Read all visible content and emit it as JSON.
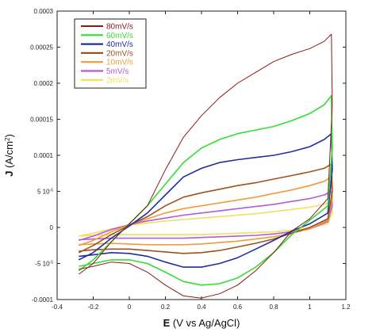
{
  "chart_data": {
    "type": "line",
    "title": "",
    "xlabel": {
      "bold": "E",
      "rest": " (V vs Ag/AgCl)"
    },
    "ylabel": {
      "bold": "J",
      "rest": " (A/cm",
      "sup": "2",
      "end": ")"
    },
    "xlim": [
      -0.4,
      1.2
    ],
    "ylim": [
      -0.0001,
      0.0003
    ],
    "x_ticks": [
      -0.4,
      -0.2,
      0,
      0.2,
      0.4,
      0.6,
      0.8,
      1,
      1.2
    ],
    "x_tick_labels": [
      "-0.4",
      "-0.2",
      "0",
      "0.2",
      "0.4",
      "0.6",
      "0.8",
      "1",
      "1.2"
    ],
    "y_ticks": [
      -0.0001,
      -5e-05,
      0,
      5e-05,
      0.0001,
      0.00015,
      0.0002,
      0.00025,
      0.0003
    ],
    "y_tick_labels": [
      "-0.0001",
      "-5 10",
      "0",
      "5 10",
      "0.0001",
      "0.00015",
      "0.0002",
      "0.00025",
      "0.0003"
    ],
    "y_tick_label_sup": [
      "",
      "-5",
      "",
      "-5",
      "",
      "",
      "",
      "",
      ""
    ],
    "grid": false,
    "legend": "top-left",
    "series": [
      {
        "name": "80mV/s",
        "color": "#8b1a1a",
        "width": 1,
        "forward": [
          [
            -0.28,
            -6.5e-05
          ],
          [
            -0.2,
            -5e-05
          ],
          [
            -0.1,
            -2e-05
          ],
          [
            0,
            5e-06
          ],
          [
            0.1,
            3e-05
          ],
          [
            0.2,
            8e-05
          ],
          [
            0.3,
            0.000125
          ],
          [
            0.4,
            0.000155
          ],
          [
            0.5,
            0.00018
          ],
          [
            0.6,
            0.0002
          ],
          [
            0.7,
            0.000215
          ],
          [
            0.8,
            0.00023
          ],
          [
            0.9,
            0.00024
          ],
          [
            1.0,
            0.000248
          ],
          [
            1.08,
            0.000258
          ],
          [
            1.12,
            0.000268
          ]
        ],
        "reverse": [
          [
            1.12,
            0.000268
          ],
          [
            1.125,
            0.00017
          ],
          [
            1.1,
            4e-05
          ],
          [
            1.0,
            1.2e-05
          ],
          [
            0.9,
            -5e-06
          ],
          [
            0.8,
            -3.5e-05
          ],
          [
            0.7,
            -6e-05
          ],
          [
            0.6,
            -8e-05
          ],
          [
            0.5,
            -9.2e-05
          ],
          [
            0.4,
            -9.8e-05
          ],
          [
            0.3,
            -9.5e-05
          ],
          [
            0.2,
            -8e-05
          ],
          [
            0.1,
            -6.2e-05
          ],
          [
            0,
            -5e-05
          ],
          [
            -0.1,
            -4.8e-05
          ],
          [
            -0.2,
            -5.4e-05
          ],
          [
            -0.28,
            -5.8e-05
          ]
        ]
      },
      {
        "name": "60mV/s",
        "color": "#33dd33",
        "width": 1.6,
        "forward": [
          [
            -0.28,
            -6e-05
          ],
          [
            -0.2,
            -4.5e-05
          ],
          [
            -0.1,
            -2e-05
          ],
          [
            0,
            5e-06
          ],
          [
            0.1,
            3e-05
          ],
          [
            0.2,
            6e-05
          ],
          [
            0.3,
            9e-05
          ],
          [
            0.4,
            0.00011
          ],
          [
            0.5,
            0.000122
          ],
          [
            0.6,
            0.00013
          ],
          [
            0.7,
            0.000135
          ],
          [
            0.8,
            0.00014
          ],
          [
            0.9,
            0.000148
          ],
          [
            1.0,
            0.000158
          ],
          [
            1.08,
            0.00017
          ],
          [
            1.12,
            0.000183
          ]
        ],
        "reverse": [
          [
            1.12,
            0.000183
          ],
          [
            1.125,
            0.00011
          ],
          [
            1.1,
            3e-05
          ],
          [
            1.0,
            1e-05
          ],
          [
            0.9,
            -1e-05
          ],
          [
            0.8,
            -3.5e-05
          ],
          [
            0.7,
            -5.5e-05
          ],
          [
            0.6,
            -7e-05
          ],
          [
            0.5,
            -7.8e-05
          ],
          [
            0.4,
            -8e-05
          ],
          [
            0.3,
            -7.5e-05
          ],
          [
            0.2,
            -6.2e-05
          ],
          [
            0.1,
            -5e-05
          ],
          [
            0,
            -4.5e-05
          ],
          [
            -0.1,
            -4.5e-05
          ],
          [
            -0.2,
            -5e-05
          ],
          [
            -0.28,
            -5.4e-05
          ]
        ]
      },
      {
        "name": "40mV/s",
        "color": "#1f2fa0",
        "width": 1.6,
        "forward": [
          [
            -0.28,
            -4.5e-05
          ],
          [
            -0.2,
            -3.5e-05
          ],
          [
            -0.1,
            -1.5e-05
          ],
          [
            0,
            2e-06
          ],
          [
            0.1,
            2e-05
          ],
          [
            0.2,
            4.5e-05
          ],
          [
            0.3,
            7e-05
          ],
          [
            0.4,
            8.2e-05
          ],
          [
            0.5,
            9e-05
          ],
          [
            0.6,
            9.4e-05
          ],
          [
            0.7,
            9.7e-05
          ],
          [
            0.8,
            0.0001
          ],
          [
            0.9,
            0.000105
          ],
          [
            1.0,
            0.000112
          ],
          [
            1.08,
            0.000122
          ],
          [
            1.12,
            0.00013
          ]
        ],
        "reverse": [
          [
            1.12,
            0.00013
          ],
          [
            1.125,
            8e-05
          ],
          [
            1.1,
            2e-05
          ],
          [
            1.0,
            5e-06
          ],
          [
            0.9,
            -5e-06
          ],
          [
            0.8,
            -1.8e-05
          ],
          [
            0.7,
            -3e-05
          ],
          [
            0.6,
            -4.2e-05
          ],
          [
            0.5,
            -5e-05
          ],
          [
            0.4,
            -5.5e-05
          ],
          [
            0.3,
            -5.5e-05
          ],
          [
            0.2,
            -4.8e-05
          ],
          [
            0.1,
            -4e-05
          ],
          [
            0,
            -3.6e-05
          ],
          [
            -0.1,
            -3.5e-05
          ],
          [
            -0.2,
            -3.8e-05
          ],
          [
            -0.28,
            -4e-05
          ]
        ]
      },
      {
        "name": "20mV/s",
        "color": "#a0521c",
        "width": 1.6,
        "forward": [
          [
            -0.28,
            -3.5e-05
          ],
          [
            -0.2,
            -2.5e-05
          ],
          [
            -0.1,
            -1e-05
          ],
          [
            0,
            3e-06
          ],
          [
            0.1,
            1.5e-05
          ],
          [
            0.2,
            3e-05
          ],
          [
            0.3,
            4.2e-05
          ],
          [
            0.4,
            4.8e-05
          ],
          [
            0.5,
            5.3e-05
          ],
          [
            0.6,
            5.8e-05
          ],
          [
            0.7,
            6.2e-05
          ],
          [
            0.8,
            6.7e-05
          ],
          [
            0.9,
            7.2e-05
          ],
          [
            1.0,
            7.7e-05
          ],
          [
            1.08,
            8.2e-05
          ],
          [
            1.12,
            8.8e-05
          ]
        ],
        "reverse": [
          [
            1.12,
            8.8e-05
          ],
          [
            1.125,
            5e-05
          ],
          [
            1.1,
            1.2e-05
          ],
          [
            1.0,
            0
          ],
          [
            0.9,
            -8e-06
          ],
          [
            0.8,
            -1.6e-05
          ],
          [
            0.7,
            -2.2e-05
          ],
          [
            0.6,
            -2.7e-05
          ],
          [
            0.5,
            -3.2e-05
          ],
          [
            0.4,
            -3.5e-05
          ],
          [
            0.3,
            -3.6e-05
          ],
          [
            0.2,
            -3.4e-05
          ],
          [
            0.1,
            -3.2e-05
          ],
          [
            0,
            -3e-05
          ],
          [
            -0.1,
            -3e-05
          ],
          [
            -0.2,
            -3.1e-05
          ],
          [
            -0.28,
            -3.3e-05
          ]
        ]
      },
      {
        "name": "10mV/s",
        "color": "#f29a3a",
        "width": 1.6,
        "forward": [
          [
            -0.28,
            -2.5e-05
          ],
          [
            -0.2,
            -1.8e-05
          ],
          [
            -0.1,
            -6e-06
          ],
          [
            0,
            4e-06
          ],
          [
            0.1,
            1.2e-05
          ],
          [
            0.2,
            2e-05
          ],
          [
            0.3,
            2.6e-05
          ],
          [
            0.4,
            3e-05
          ],
          [
            0.5,
            3.4e-05
          ],
          [
            0.6,
            3.8e-05
          ],
          [
            0.7,
            4.2e-05
          ],
          [
            0.8,
            4.7e-05
          ],
          [
            0.9,
            5.2e-05
          ],
          [
            1.0,
            5.8e-05
          ],
          [
            1.08,
            6.4e-05
          ],
          [
            1.12,
            7e-05
          ]
        ],
        "reverse": [
          [
            1.12,
            7e-05
          ],
          [
            1.125,
            4e-05
          ],
          [
            1.1,
            1e-05
          ],
          [
            1.0,
            -2e-06
          ],
          [
            0.9,
            -8e-06
          ],
          [
            0.8,
            -1.3e-05
          ],
          [
            0.7,
            -1.6e-05
          ],
          [
            0.6,
            -1.9e-05
          ],
          [
            0.5,
            -2.1e-05
          ],
          [
            0.4,
            -2.3e-05
          ],
          [
            0.3,
            -2.4e-05
          ],
          [
            0.2,
            -2.4e-05
          ],
          [
            0.1,
            -2.4e-05
          ],
          [
            0,
            -2.3e-05
          ],
          [
            -0.1,
            -2.2e-05
          ],
          [
            -0.2,
            -2.3e-05
          ],
          [
            -0.28,
            -2.4e-05
          ]
        ]
      },
      {
        "name": "5mV/s",
        "color": "#b45ad6",
        "width": 1.6,
        "forward": [
          [
            -0.28,
            -1.8e-05
          ],
          [
            -0.2,
            -1.2e-05
          ],
          [
            -0.1,
            -3e-06
          ],
          [
            0,
            4e-06
          ],
          [
            0.1,
            9e-06
          ],
          [
            0.2,
            1.3e-05
          ],
          [
            0.3,
            1.7e-05
          ],
          [
            0.4,
            2e-05
          ],
          [
            0.5,
            2.3e-05
          ],
          [
            0.6,
            2.6e-05
          ],
          [
            0.7,
            2.9e-05
          ],
          [
            0.8,
            3.2e-05
          ],
          [
            0.9,
            3.6e-05
          ],
          [
            1.0,
            4e-05
          ],
          [
            1.08,
            4.5e-05
          ],
          [
            1.12,
            5e-05
          ]
        ],
        "reverse": [
          [
            1.12,
            5e-05
          ],
          [
            1.125,
            3e-05
          ],
          [
            1.1,
            8e-06
          ],
          [
            1.0,
            -2e-06
          ],
          [
            0.9,
            -6e-06
          ],
          [
            0.8,
            -9e-06
          ],
          [
            0.7,
            -1.1e-05
          ],
          [
            0.6,
            -1.2e-05
          ],
          [
            0.5,
            -1.3e-05
          ],
          [
            0.4,
            -1.4e-05
          ],
          [
            0.3,
            -1.5e-05
          ],
          [
            0.2,
            -1.5e-05
          ],
          [
            0.1,
            -1.5e-05
          ],
          [
            0,
            -1.5e-05
          ],
          [
            -0.1,
            -1.5e-05
          ],
          [
            -0.2,
            -1.6e-05
          ],
          [
            -0.28,
            -1.7e-05
          ]
        ]
      },
      {
        "name": "2mV/s",
        "color": "#f2e05a",
        "width": 1.6,
        "forward": [
          [
            -0.28,
            -1.2e-05
          ],
          [
            -0.2,
            -8e-06
          ],
          [
            -0.1,
            -2e-06
          ],
          [
            0,
            3e-06
          ],
          [
            0.1,
            6e-06
          ],
          [
            0.2,
            9e-06
          ],
          [
            0.3,
            1.1e-05
          ],
          [
            0.4,
            1.3e-05
          ],
          [
            0.5,
            1.5e-05
          ],
          [
            0.6,
            1.7e-05
          ],
          [
            0.7,
            1.9e-05
          ],
          [
            0.8,
            2.2e-05
          ],
          [
            0.9,
            2.5e-05
          ],
          [
            1.0,
            2.8e-05
          ],
          [
            1.08,
            3.2e-05
          ],
          [
            1.12,
            3.6e-05
          ]
        ],
        "reverse": [
          [
            1.12,
            3.6e-05
          ],
          [
            1.125,
            2e-05
          ],
          [
            1.1,
            5e-06
          ],
          [
            1.0,
            -1e-06
          ],
          [
            0.9,
            -4e-06
          ],
          [
            0.8,
            -6e-06
          ],
          [
            0.7,
            -7e-06
          ],
          [
            0.6,
            -8e-06
          ],
          [
            0.5,
            -9e-06
          ],
          [
            0.4,
            -1e-05
          ],
          [
            0.3,
            -1e-05
          ],
          [
            0.2,
            -1e-05
          ],
          [
            0.1,
            -1e-05
          ],
          [
            0,
            -1e-05
          ],
          [
            -0.1,
            -1e-05
          ],
          [
            -0.2,
            -1.1e-05
          ],
          [
            -0.28,
            -1.2e-05
          ]
        ]
      }
    ]
  }
}
